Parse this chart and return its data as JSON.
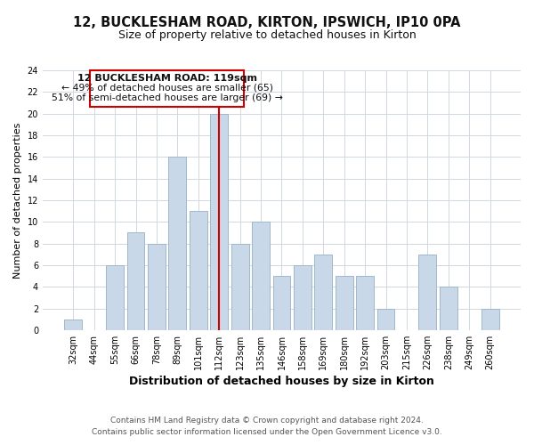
{
  "title": "12, BUCKLESHAM ROAD, KIRTON, IPSWICH, IP10 0PA",
  "subtitle": "Size of property relative to detached houses in Kirton",
  "xlabel": "Distribution of detached houses by size in Kirton",
  "ylabel": "Number of detached properties",
  "bar_labels": [
    "32sqm",
    "44sqm",
    "55sqm",
    "66sqm",
    "78sqm",
    "89sqm",
    "101sqm",
    "112sqm",
    "123sqm",
    "135sqm",
    "146sqm",
    "158sqm",
    "169sqm",
    "180sqm",
    "192sqm",
    "203sqm",
    "215sqm",
    "226sqm",
    "238sqm",
    "249sqm",
    "260sqm"
  ],
  "bar_values": [
    1,
    0,
    6,
    9,
    8,
    16,
    11,
    20,
    8,
    10,
    5,
    6,
    7,
    5,
    5,
    2,
    0,
    7,
    4,
    0,
    2
  ],
  "bar_color": "#c8d8e8",
  "bar_edge_color": "#a0b8cc",
  "highlight_index": 7,
  "highlight_line_color": "#cc0000",
  "ylim": [
    0,
    24
  ],
  "yticks": [
    0,
    2,
    4,
    6,
    8,
    10,
    12,
    14,
    16,
    18,
    20,
    22,
    24
  ],
  "annotation_title": "12 BUCKLESHAM ROAD: 119sqm",
  "annotation_line1": "← 49% of detached houses are smaller (65)",
  "annotation_line2": "51% of semi-detached houses are larger (69) →",
  "annotation_box_color": "#ffffff",
  "annotation_box_edge": "#cc0000",
  "footer_line1": "Contains HM Land Registry data © Crown copyright and database right 2024.",
  "footer_line2": "Contains public sector information licensed under the Open Government Licence v3.0.",
  "background_color": "#ffffff",
  "grid_color": "#d0d8e0"
}
